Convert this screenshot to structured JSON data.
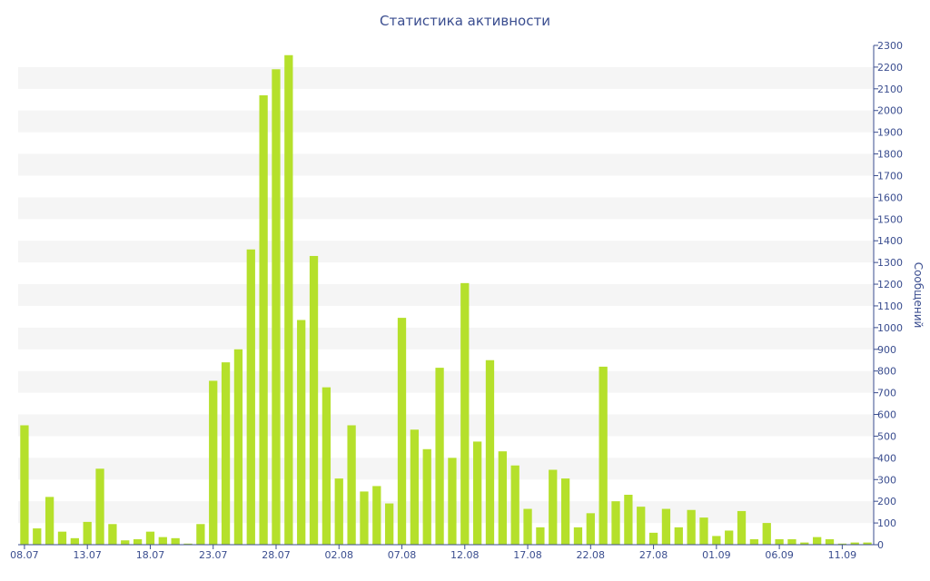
{
  "chart_data": {
    "type": "bar",
    "title": "Статистика активности",
    "xlabel": "",
    "ylabel": "Сообщений",
    "ylim": [
      0,
      2300
    ],
    "ytick_step": 100,
    "grid": "alternating horizontal bands",
    "y_axis_side": "right",
    "x_tick_labels": [
      "08.07",
      "13.07",
      "18.07",
      "23.07",
      "28.07",
      "02.08",
      "07.08",
      "12.08",
      "17.08",
      "22.08",
      "27.08",
      "01.09",
      "06.09",
      "11.09"
    ],
    "categories": [
      "08.07",
      "09.07",
      "10.07",
      "11.07",
      "12.07",
      "13.07",
      "14.07",
      "15.07",
      "16.07",
      "17.07",
      "18.07",
      "19.07",
      "20.07",
      "21.07",
      "22.07",
      "23.07",
      "24.07",
      "25.07",
      "26.07",
      "27.07",
      "28.07",
      "29.07",
      "30.07",
      "31.07",
      "01.08",
      "02.08",
      "03.08",
      "04.08",
      "05.08",
      "06.08",
      "07.08",
      "08.08",
      "09.08",
      "10.08",
      "11.08",
      "12.08",
      "13.08",
      "14.08",
      "15.08",
      "16.08",
      "17.08",
      "18.08",
      "19.08",
      "20.08",
      "21.08",
      "22.08",
      "23.08",
      "24.08",
      "25.08",
      "26.08",
      "27.08",
      "28.08",
      "29.08",
      "30.08",
      "31.08",
      "01.09",
      "02.09",
      "03.09",
      "04.09",
      "05.09",
      "06.09",
      "07.09",
      "08.09",
      "09.09",
      "10.09",
      "11.09",
      "12.09",
      "13.09"
    ],
    "series": [
      {
        "color": "#b5e02b",
        "values": [
          550,
          75,
          220,
          60,
          30,
          105,
          350,
          95,
          20,
          25,
          60,
          35,
          30,
          5,
          95,
          755,
          840,
          900,
          1360,
          2070,
          2190,
          2255,
          1035,
          1330,
          725,
          305,
          550,
          245,
          270,
          190,
          1045,
          530,
          440,
          815,
          400,
          1205,
          475,
          850,
          430,
          365,
          165,
          80,
          345,
          305,
          80,
          145,
          820,
          200,
          230,
          175,
          55,
          165,
          80,
          160,
          125,
          40,
          65,
          155,
          25,
          100,
          25,
          25,
          10,
          35,
          25,
          5,
          10,
          10
        ]
      }
    ]
  }
}
